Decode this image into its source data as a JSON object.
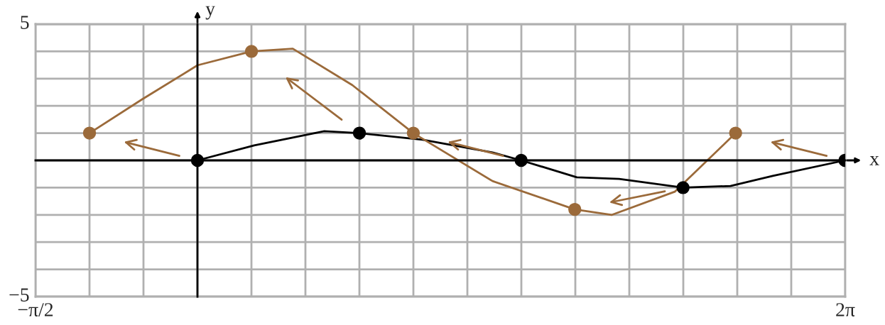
{
  "chart_data": {
    "type": "line",
    "xlabel": "x",
    "ylabel": "y",
    "xlim": [
      -1.5708,
      6.2832
    ],
    "ylim": [
      -5,
      5
    ],
    "xticks": [
      {
        "value": -1.5708,
        "label": "−π/2"
      },
      {
        "value": -1.0472,
        "label": null
      },
      {
        "value": -0.5236,
        "label": null
      },
      {
        "value": 0,
        "label": null
      },
      {
        "value": 0.5236,
        "label": null
      },
      {
        "value": 1.0472,
        "label": null
      },
      {
        "value": 1.5708,
        "label": null
      },
      {
        "value": 2.0944,
        "label": null
      },
      {
        "value": 2.618,
        "label": null
      },
      {
        "value": 3.1416,
        "label": null
      },
      {
        "value": 3.6652,
        "label": null
      },
      {
        "value": 4.1888,
        "label": null
      },
      {
        "value": 4.7124,
        "label": null
      },
      {
        "value": 5.236,
        "label": null
      },
      {
        "value": 5.7596,
        "label": null
      },
      {
        "value": 6.2832,
        "label": "2π"
      }
    ],
    "yticks": [
      5,
      {
        "value": 4,
        "label": null
      },
      {
        "value": 3,
        "label": null
      },
      {
        "value": 2,
        "label": null
      },
      {
        "value": 1,
        "label": null
      },
      {
        "value": 0,
        "label": null
      },
      {
        "value": -1,
        "label": null
      },
      {
        "value": -2,
        "label": null
      },
      {
        "value": -3,
        "label": null
      },
      {
        "value": -4,
        "label": null
      },
      {
        "value": -5,
        "label": "−5"
      }
    ],
    "grid": true,
    "series": [
      {
        "type": "line",
        "color": "#000000",
        "x": [
          0,
          0.551,
          1.23,
          1.571,
          2.183,
          2.862,
          3.14,
          3.68,
          4.09,
          4.71,
          5.17,
          5.58,
          6.28
        ],
        "values": [
          0,
          0.55,
          1.07,
          1,
          0.76,
          0.29,
          0,
          -0.62,
          -0.68,
          -1,
          -0.94,
          -0.57,
          0
        ]
      },
      {
        "type": "line",
        "color": "#9b6a3a",
        "x": [
          -1.047,
          -0.537,
          0,
          0.524,
          0.925,
          1.503,
          2.094,
          2.862,
          3.66,
          4.02,
          4.63,
          5.22
        ],
        "values": [
          1,
          2.24,
          3.49,
          4,
          4.1,
          2.76,
          1,
          -0.76,
          -1.8,
          -2,
          -1.15,
          1
        ]
      },
      {
        "type": "scatter",
        "color": "#000000",
        "x": [
          0,
          1.571,
          3.14,
          4.71,
          6.28
        ],
        "values": [
          0,
          1,
          0,
          -1,
          0
        ]
      },
      {
        "type": "scatter",
        "color": "#9b6a3a",
        "x": [
          -1.047,
          0.524,
          2.094,
          3.66,
          5.22
        ],
        "values": [
          1,
          4,
          1,
          -1.8,
          1
        ]
      }
    ]
  }
}
